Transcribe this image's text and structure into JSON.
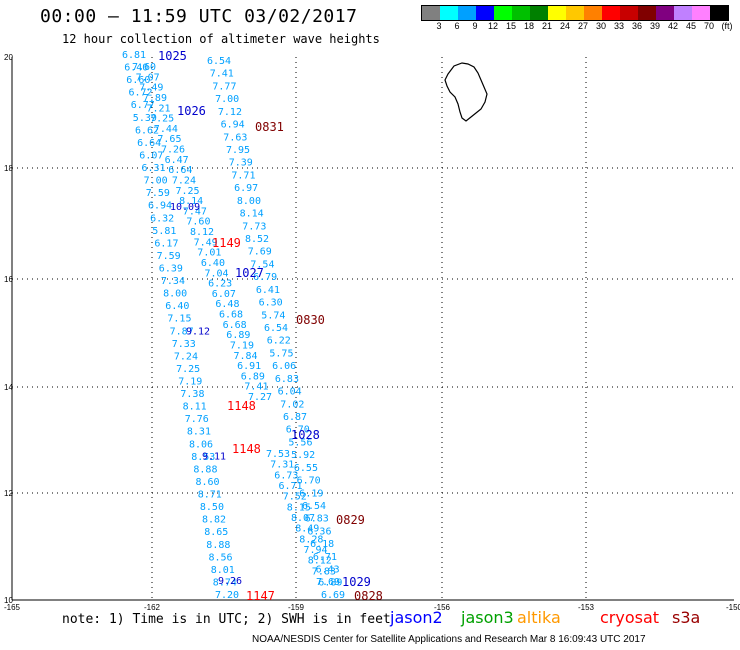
{
  "header": {
    "title": "00:00 – 11:59 UTC 03/02/2017",
    "subtitle": "12 hour collection of altimeter wave heights"
  },
  "color_scale": {
    "colors": [
      "#808080",
      "#00ffff",
      "#00a0ff",
      "#0000ff",
      "#00ff00",
      "#00c000",
      "#008000",
      "#ffff00",
      "#ffc800",
      "#ff8000",
      "#ff0000",
      "#c80000",
      "#800000",
      "#800080",
      "#c080ff",
      "#ff80ff",
      "#000000"
    ],
    "labels": [
      "3",
      "6",
      "9",
      "12",
      "15",
      "18",
      "21",
      "24",
      "27",
      "30",
      "33",
      "36",
      "39",
      "42",
      "45",
      "70",
      "(ft)"
    ]
  },
  "map": {
    "lat_labels": [
      "20",
      "18",
      "16",
      "14",
      "12",
      "10"
    ],
    "lon_labels": [
      "-165",
      "-162",
      "-159",
      "-156",
      "-153",
      "-150"
    ],
    "pass_times": [
      {
        "text": "1025",
        "color": "#0000cc"
      },
      {
        "text": "1026",
        "color": "#0000cc"
      },
      {
        "text": "0831",
        "color": "#800000"
      },
      {
        "text": "1149",
        "color": "#ff0000"
      },
      {
        "text": "1027",
        "color": "#0000cc"
      },
      {
        "text": "0830",
        "color": "#800000"
      },
      {
        "text": "1148",
        "color": "#ff0000"
      },
      {
        "text": "1028",
        "color": "#0000cc"
      },
      {
        "text": "1148",
        "color": "#ff0000"
      },
      {
        "text": "0829",
        "color": "#800000"
      },
      {
        "text": "1029",
        "color": "#0000cc"
      },
      {
        "text": "0828",
        "color": "#800000"
      },
      {
        "text": "1147",
        "color": "#ff0000"
      }
    ],
    "tracks": [
      {
        "color": "#00a0ff",
        "values": [
          "6.81",
          "6.40",
          "6.60",
          "6.72",
          "6.77",
          "5.39",
          "6.62",
          "6.64",
          "6.07",
          "6.31",
          "7.00",
          "7.59",
          "6.94",
          "6.32",
          "5.81",
          "6.17",
          "7.59",
          "6.39",
          "7.34",
          "8.00",
          "6.40",
          "7.15",
          "7.87",
          "7.33",
          "7.24",
          "7.25",
          "7.19",
          "7.38",
          "8.11",
          "7.76",
          "8.31",
          "8.06",
          "8.53",
          "8.88",
          "8.60",
          "8.71",
          "8.50",
          "8.82",
          "8.65",
          "8.88",
          "8.56",
          "8.01",
          "8.74",
          "7.20"
        ]
      },
      {
        "color": "#00a0ff",
        "values": [
          "7.60",
          "7.07",
          "7.49",
          "7.89",
          "7.21",
          "7.25",
          "7.44",
          "7.65",
          "7.26",
          "6.47",
          "6.64",
          "7.24",
          "7.25",
          "8.14",
          "7.47",
          "7.60",
          "8.12",
          "7.49",
          "7.01",
          "6.40",
          "7.04",
          "6.23",
          "6.07",
          "6.48",
          "6.68",
          "6.68",
          "6.89",
          "7.19",
          "7.84",
          "6.91",
          "6.89",
          "7.41",
          "7.27"
        ]
      },
      {
        "color": "#00a0ff",
        "values": [
          "6.54",
          "7.41",
          "7.77",
          "7.00",
          "7.12",
          "6.94",
          "7.63",
          "7.95",
          "7.39",
          "7.71",
          "6.97",
          "8.00",
          "8.14",
          "7.73",
          "8.52",
          "7.69",
          "7.54",
          "6.79",
          "6.41",
          "6.30",
          "5.74",
          "6.54",
          "6.22",
          "5.75",
          "6.06",
          "6.83",
          "6.04",
          "7.02",
          "6.87",
          "6.70",
          "5.56",
          "5.92",
          "6.55",
          "6.70",
          "6.19",
          "6.54",
          "6.83",
          "6.36",
          "6.18",
          "6.71",
          "6.43",
          "6.89",
          "6.69"
        ]
      },
      {
        "color": "#00a0ff",
        "values": [
          "7.53",
          "7.31",
          "6.73",
          "6.71",
          "7.52",
          "8.15",
          "8.07",
          "8.49",
          "8.28",
          "7.94",
          "8.12",
          "7.83",
          "7.69"
        ]
      },
      {
        "color": "#0000cc",
        "values": [
          "10.09",
          "9.12",
          "9.11",
          "9.26"
        ]
      }
    ]
  },
  "note": "note: 1) Time is in UTC; 2) SWH is in feet",
  "legend": [
    {
      "name": "jason2",
      "color": "#0000ff"
    },
    {
      "name": "jason3",
      "color": "#00a000"
    },
    {
      "name": "altika",
      "color": "#ff9900"
    },
    {
      "name": "cryosat",
      "color": "#ff0000"
    },
    {
      "name": "s3a",
      "color": "#990000"
    }
  ],
  "credit": "NOAA/NESDIS Center for Satellite Applications and Research   Mar  8 16:09:43 UTC 2017"
}
